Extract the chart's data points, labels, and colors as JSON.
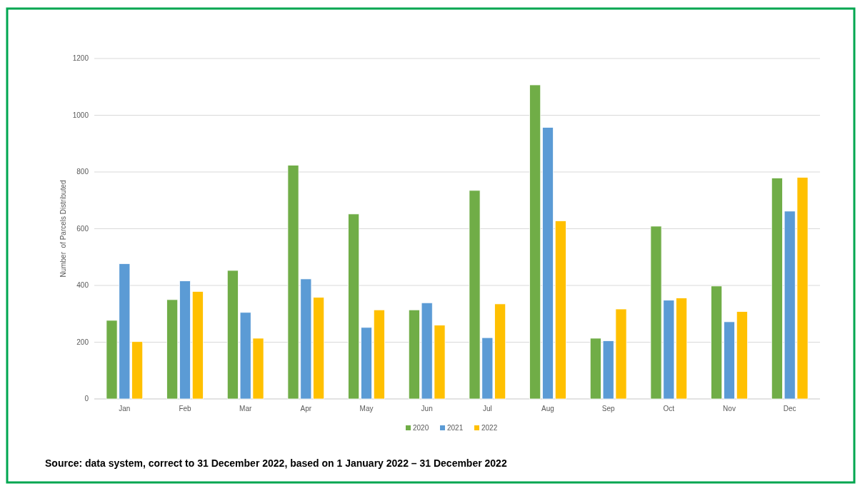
{
  "chart_data": {
    "type": "bar",
    "ylabel": "Number  of Parcels Distributed",
    "categories": [
      "Jan",
      "Feb",
      "Mar",
      "Apr",
      "May",
      "Jun",
      "Jul",
      "Aug",
      "Sep",
      "Oct",
      "Nov",
      "Dec"
    ],
    "series": [
      {
        "name": "2020",
        "color": "#70ad47",
        "values": [
          277,
          350,
          453,
          824,
          652,
          314,
          735,
          1107,
          214,
          609,
          398,
          779
        ]
      },
      {
        "name": "2021",
        "color": "#5b9bd5",
        "values": [
          477,
          416,
          305,
          423,
          252,
          339,
          216,
          957,
          205,
          348,
          272,
          662
        ]
      },
      {
        "name": "2022",
        "color": "#ffc000",
        "values": [
          202,
          379,
          214,
          358,
          314,
          260,
          335,
          628,
          317,
          356,
          308,
          781
        ]
      }
    ],
    "ylim": [
      0,
      1200
    ],
    "yticks": [
      0,
      200,
      400,
      600,
      800,
      1000,
      1200
    ],
    "grid": "y",
    "legend": "bottom",
    "annotations": [
      "Source: data system, correct to 31 December 2022, based on 1 January 2022 – 31 December 2022"
    ]
  }
}
